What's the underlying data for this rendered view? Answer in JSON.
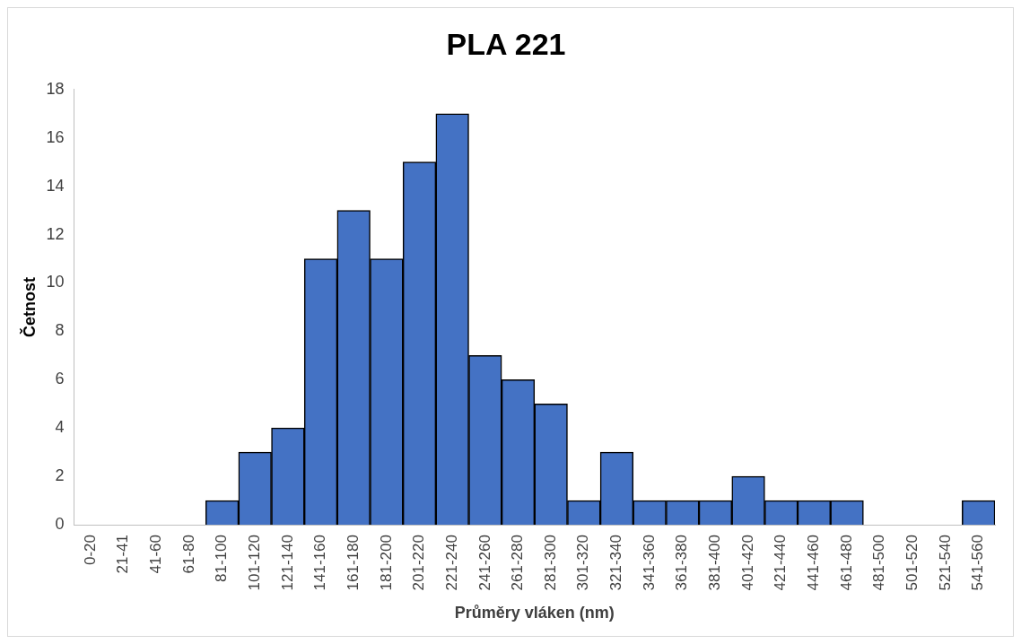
{
  "chart_data": {
    "type": "bar",
    "title": "PLA 221",
    "xlabel": "Průměry vláken (nm)",
    "ylabel": "Četnost",
    "categories": [
      "0-20",
      "21-41",
      "41-60",
      "61-80",
      "81-100",
      "101-120",
      "121-140",
      "141-160",
      "161-180",
      "181-200",
      "201-220",
      "221-240",
      "241-260",
      "261-280",
      "281-300",
      "301-320",
      "321-340",
      "341-360",
      "361-380",
      "381-400",
      "401-420",
      "421-440",
      "441-460",
      "461-480",
      "481-500",
      "501-520",
      "521-540",
      "541-560"
    ],
    "values": [
      0,
      0,
      0,
      0,
      1,
      3,
      4,
      11,
      13,
      11,
      15,
      17,
      7,
      6,
      5,
      1,
      3,
      1,
      1,
      1,
      2,
      1,
      1,
      1,
      0,
      0,
      0,
      1
    ],
    "color": "#4472c4",
    "ylim": [
      0,
      18
    ],
    "yticks": [
      0,
      2,
      4,
      6,
      8,
      10,
      12,
      14,
      16,
      18
    ],
    "grid": false,
    "legend": false
  }
}
